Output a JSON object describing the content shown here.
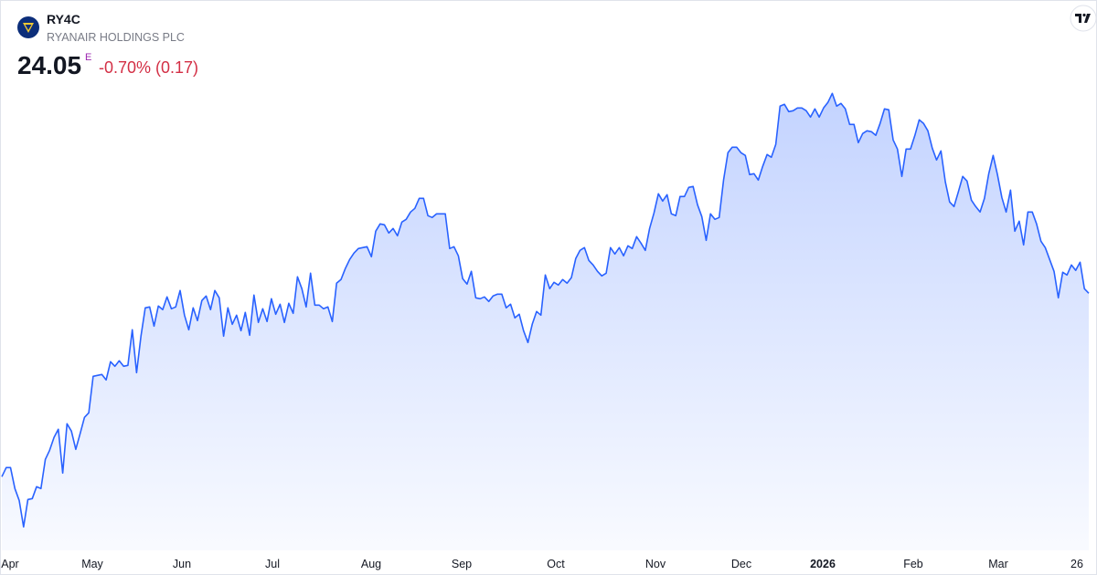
{
  "header": {
    "ticker": "RY4C",
    "company": "RYANAIR HOLDINGS PLC",
    "price": "24.05",
    "flag": "E",
    "change": "-0.70% (0.17)"
  },
  "chart_data": {
    "type": "area",
    "color": "#2962ff",
    "ylim": [
      15.6,
      32
    ],
    "xaxis_labels": [
      "Apr",
      "May",
      "Jun",
      "Jul",
      "Aug",
      "Sep",
      "Oct",
      "Nov",
      "Dec",
      "2026",
      "Feb",
      "Mar",
      "26"
    ],
    "values": [
      18.02,
      18.32,
      18.32,
      17.63,
      17.24,
      16.37,
      17.27,
      17.3,
      17.69,
      17.63,
      18.59,
      18.89,
      19.31,
      19.58,
      18.14,
      19.76,
      19.52,
      18.92,
      19.43,
      19.97,
      20.12,
      21.32,
      21.35,
      21.38,
      21.2,
      21.8,
      21.65,
      21.83,
      21.65,
      21.68,
      22.85,
      21.44,
      22.64,
      23.57,
      23.6,
      22.97,
      23.63,
      23.51,
      23.93,
      23.54,
      23.6,
      24.14,
      23.33,
      22.85,
      23.57,
      23.15,
      23.81,
      23.96,
      23.51,
      24.14,
      23.9,
      22.64,
      23.57,
      23.03,
      23.33,
      22.82,
      23.42,
      22.67,
      23.99,
      23.09,
      23.54,
      23.12,
      23.87,
      23.36,
      23.69,
      23.09,
      23.72,
      23.39,
      24.59,
      24.2,
      23.6,
      24.71,
      23.66,
      23.66,
      23.54,
      23.6,
      23.12,
      24.38,
      24.5,
      24.86,
      25.16,
      25.37,
      25.52,
      25.55,
      25.58,
      25.25,
      26.09,
      26.33,
      26.3,
      26.03,
      26.18,
      25.94,
      26.39,
      26.48,
      26.72,
      26.84,
      27.17,
      27.17,
      26.6,
      26.54,
      26.66,
      26.66,
      26.66,
      25.52,
      25.58,
      25.28,
      24.53,
      24.35,
      24.77,
      23.9,
      23.87,
      23.93,
      23.78,
      23.96,
      24.02,
      24.02,
      23.57,
      23.69,
      23.24,
      23.36,
      22.82,
      22.43,
      23.03,
      23.45,
      23.33,
      24.65,
      24.2,
      24.41,
      24.32,
      24.5,
      24.38,
      24.56,
      25.19,
      25.46,
      25.55,
      25.13,
      24.98,
      24.77,
      24.62,
      24.71,
      25.55,
      25.34,
      25.55,
      25.28,
      25.61,
      25.52,
      25.91,
      25.7,
      25.46,
      26.18,
      26.69,
      27.32,
      27.08,
      27.29,
      26.66,
      26.6,
      27.23,
      27.23,
      27.53,
      27.56,
      26.96,
      26.57,
      25.79,
      26.66,
      26.48,
      26.54,
      27.77,
      28.67,
      28.85,
      28.85,
      28.67,
      28.58,
      27.95,
      27.98,
      27.77,
      28.22,
      28.61,
      28.52,
      28.94,
      30.2,
      30.26,
      30.02,
      30.05,
      30.14,
      30.14,
      30.05,
      29.84,
      30.11,
      29.84,
      30.14,
      30.32,
      30.62,
      30.2,
      30.29,
      30.11,
      29.6,
      29.6,
      29.0,
      29.3,
      29.39,
      29.36,
      29.24,
      29.63,
      30.11,
      30.08,
      29.09,
      28.79,
      27.89,
      28.79,
      28.79,
      29.24,
      29.75,
      29.63,
      29.39,
      28.82,
      28.43,
      28.73,
      27.71,
      27.05,
      26.9,
      27.38,
      27.89,
      27.74,
      27.11,
      26.9,
      26.72,
      27.17,
      27.98,
      28.58,
      27.95,
      27.2,
      26.72,
      27.44,
      26.09,
      26.42,
      25.64,
      26.72,
      26.72,
      26.33,
      25.76,
      25.55,
      25.16,
      24.77,
      23.9,
      24.74,
      24.65,
      24.98,
      24.8,
      25.07,
      24.2,
      24.05
    ]
  }
}
